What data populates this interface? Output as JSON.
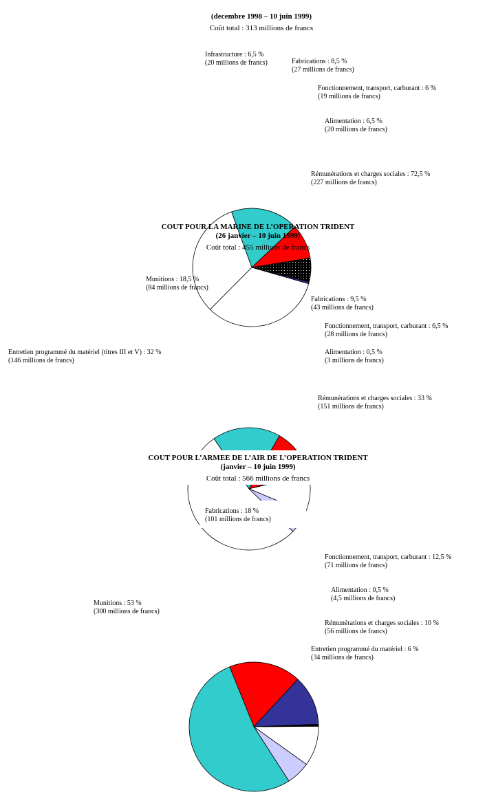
{
  "colors": {
    "cyan": "#33cccc",
    "red": "#ff0000",
    "navy": "#333399",
    "lavender": "#ccccff",
    "white": "#ffffff",
    "black": "#000000"
  },
  "chart_data": [
    {
      "type": "pie",
      "title": "",
      "subtitle": "(decembre 1998 – 10 juin 1999)",
      "total": "Coût total : 313 millions de francs",
      "slices": [
        {
          "label": "Infrastructure : 6,5 %",
          "amount": "(20 millions de francs)",
          "value": 6.5
        },
        {
          "label": "Fabrications : 8,5 %",
          "amount": "(27 millions de francs)",
          "value": 8.5
        },
        {
          "label": "Fonctionnement, transport, carburant : 6 %",
          "amount": "(19 millions de francs)",
          "value": 6
        },
        {
          "label": "Alimentation : 6,5 %",
          "amount": "(20 millions de francs)",
          "value": 6.5
        },
        {
          "label": "Rémunérations et charges sociales : 72,5 %",
          "amount": "(227 millions de francs)",
          "value": 72.5
        }
      ]
    },
    {
      "type": "pie",
      "title": "COUT POUR LA MARINE DE L’OPERATION TRIDENT",
      "subtitle": "(26 janvier – 10 juin 1999)",
      "total": "Coût total : 455 millions de francs",
      "slices": [
        {
          "label": "Munitions : 18,5 %",
          "amount": "(84 millions de francs)",
          "value": 18.5
        },
        {
          "label": "Fabrications : 9,5 %",
          "amount": "(43 millions de francs)",
          "value": 9.5
        },
        {
          "label": "Fonctionnement, transport, carburant : 6,5 %",
          "amount": "(28 millions de francs)",
          "value": 6.5
        },
        {
          "label": "Alimentation : 0,5 %",
          "amount": "(3 millions de francs)",
          "value": 0.5
        },
        {
          "label": "Rémunérations et charges sociales : 33 %",
          "amount": "(151 millions de francs)",
          "value": 33
        },
        {
          "label": "Entretien programmé du matériel (titres III et V) : 32 %",
          "amount": "(146 millions de francs)",
          "value": 32
        }
      ]
    },
    {
      "type": "pie",
      "title": "COUT POUR L’ARMEE DE L’AIR DE L’OPERATION TRIDENT",
      "subtitle": "(janvier – 10 juin 1999)",
      "total": "Coût total : 566 millions de francs",
      "slices": [
        {
          "label": "Fabrications : 18 %",
          "amount": "(101 millions de francs)",
          "value": 18
        },
        {
          "label": "Fonctionnement, transport, carburant : 12,5 %",
          "amount": "(71 millions de francs)",
          "value": 12.5
        },
        {
          "label": "Alimentation : 0,5 %",
          "amount": "(4,5 millions de francs)",
          "value": 0.5
        },
        {
          "label": "Rémunérations et charges sociales : 10 %",
          "amount": "(56 millions de francs)",
          "value": 10
        },
        {
          "label": "Entretien programmé du matériel : 6 %",
          "amount": "(34 millions de francs)",
          "value": 6
        },
        {
          "label": "Munitions : 53 %",
          "amount": "(300 millions de francs)",
          "value": 53
        }
      ]
    }
  ]
}
